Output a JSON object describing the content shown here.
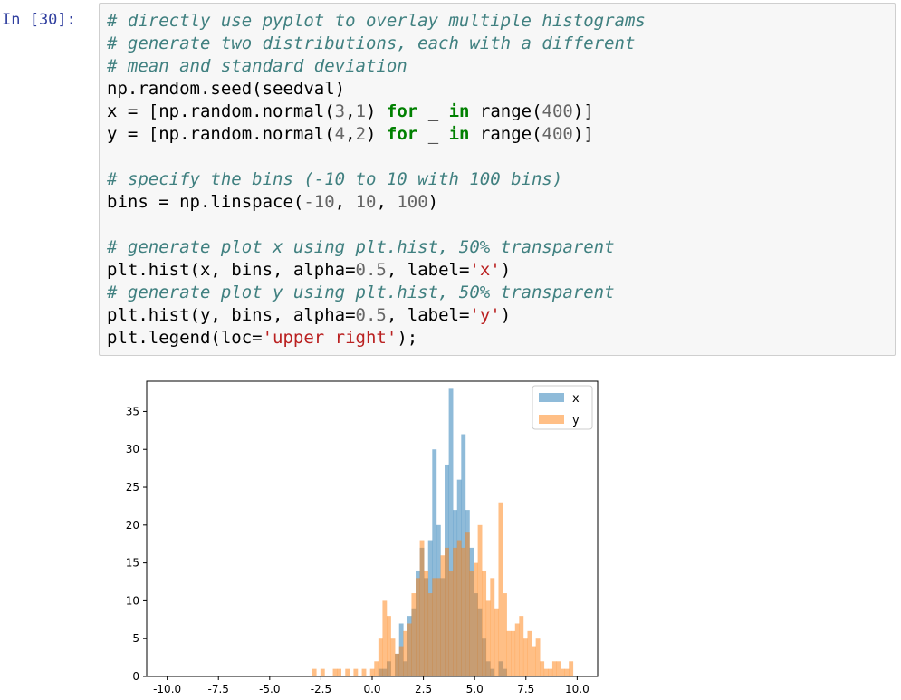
{
  "notebook": {
    "prompt": "In [30]:",
    "code_lines": [
      [
        {
          "t": "# directly use pyplot to overlay multiple histograms",
          "c": "cm"
        }
      ],
      [
        {
          "t": "# generate two distributions, each with a different",
          "c": "cm"
        }
      ],
      [
        {
          "t": "# mean and standard deviation",
          "c": "cm"
        }
      ],
      [
        {
          "t": "np.random.seed(seedval)",
          "c": ""
        }
      ],
      [
        {
          "t": "x = [np.random.normal(",
          "c": ""
        },
        {
          "t": "3",
          "c": "num"
        },
        {
          "t": ",",
          "c": ""
        },
        {
          "t": "1",
          "c": "num"
        },
        {
          "t": ") ",
          "c": ""
        },
        {
          "t": "for",
          "c": "kw"
        },
        {
          "t": " _ ",
          "c": ""
        },
        {
          "t": "in",
          "c": "kw"
        },
        {
          "t": " range(",
          "c": ""
        },
        {
          "t": "400",
          "c": "num"
        },
        {
          "t": ")]",
          "c": ""
        }
      ],
      [
        {
          "t": "y = [np.random.normal(",
          "c": ""
        },
        {
          "t": "4",
          "c": "num"
        },
        {
          "t": ",",
          "c": ""
        },
        {
          "t": "2",
          "c": "num"
        },
        {
          "t": ") ",
          "c": ""
        },
        {
          "t": "for",
          "c": "kw"
        },
        {
          "t": " _ ",
          "c": ""
        },
        {
          "t": "in",
          "c": "kw"
        },
        {
          "t": " range(",
          "c": ""
        },
        {
          "t": "400",
          "c": "num"
        },
        {
          "t": ")]",
          "c": ""
        }
      ],
      [],
      [
        {
          "t": "# specify the bins (-10 to 10 with 100 bins)",
          "c": "cm"
        }
      ],
      [
        {
          "t": "bins = np.linspace(",
          "c": ""
        },
        {
          "t": "-10",
          "c": "num"
        },
        {
          "t": ", ",
          "c": ""
        },
        {
          "t": "10",
          "c": "num"
        },
        {
          "t": ", ",
          "c": ""
        },
        {
          "t": "100",
          "c": "num"
        },
        {
          "t": ")",
          "c": ""
        }
      ],
      [],
      [
        {
          "t": "# generate plot x using plt.hist, 50% transparent",
          "c": "cm"
        }
      ],
      [
        {
          "t": "plt.hist(x, bins, alpha=",
          "c": ""
        },
        {
          "t": "0.5",
          "c": "num"
        },
        {
          "t": ", label=",
          "c": ""
        },
        {
          "t": "'x'",
          "c": "str"
        },
        {
          "t": ")",
          "c": ""
        }
      ],
      [
        {
          "t": "# generate plot y using plt.hist, 50% transparent",
          "c": "cm"
        }
      ],
      [
        {
          "t": "plt.hist(y, bins, alpha=",
          "c": ""
        },
        {
          "t": "0.5",
          "c": "num"
        },
        {
          "t": ", label=",
          "c": ""
        },
        {
          "t": "'y'",
          "c": "str"
        },
        {
          "t": ")",
          "c": ""
        }
      ],
      [
        {
          "t": "plt.legend(loc=",
          "c": ""
        },
        {
          "t": "'upper right'",
          "c": "str"
        },
        {
          "t": ");",
          "c": ""
        }
      ]
    ]
  },
  "chart_data": {
    "type": "bar",
    "title": "",
    "xlabel": "",
    "ylabel": "",
    "xlim": [
      -11,
      11
    ],
    "ylim": [
      0,
      39
    ],
    "xticks": [
      -10.0,
      -7.5,
      -5.0,
      -2.5,
      0.0,
      2.5,
      5.0,
      7.5,
      10.0
    ],
    "xtick_labels": [
      "-10.0",
      "-7.5",
      "-5.0",
      "-2.5",
      "0.0",
      "2.5",
      "5.0",
      "7.5",
      "10.0"
    ],
    "yticks": [
      0,
      5,
      10,
      15,
      20,
      25,
      30,
      35
    ],
    "ytick_labels": [
      "0",
      "5",
      "10",
      "15",
      "20",
      "25",
      "30",
      "35"
    ],
    "bin_range": [
      -10,
      10
    ],
    "bin_count": 99,
    "legend_position": "upper right",
    "series": [
      {
        "name": "x",
        "color": "#1f77b4",
        "alpha": 0.5,
        "bins": [
          [
            51,
            1
          ],
          [
            52,
            1
          ],
          [
            53,
            2
          ],
          [
            55,
            3
          ],
          [
            56,
            7
          ],
          [
            57,
            2
          ],
          [
            58,
            8
          ],
          [
            59,
            9
          ],
          [
            60,
            14
          ],
          [
            61,
            17
          ],
          [
            62,
            13
          ],
          [
            63,
            18
          ],
          [
            64,
            30
          ],
          [
            65,
            20
          ],
          [
            66,
            13
          ],
          [
            67,
            28
          ],
          [
            68,
            38
          ],
          [
            69,
            22
          ],
          [
            70,
            26
          ],
          [
            71,
            32
          ],
          [
            72,
            22
          ],
          [
            73,
            17
          ],
          [
            74,
            11
          ],
          [
            75,
            9
          ],
          [
            76,
            5
          ],
          [
            77,
            2
          ],
          [
            78,
            1
          ],
          [
            80,
            2
          ],
          [
            81,
            1
          ]
        ]
      },
      {
        "name": "y",
        "color": "#ff7f0e",
        "alpha": 0.5,
        "bins": [
          [
            35,
            1
          ],
          [
            37,
            1
          ],
          [
            40,
            1
          ],
          [
            41,
            1
          ],
          [
            43,
            1
          ],
          [
            45,
            1
          ],
          [
            47,
            1
          ],
          [
            49,
            1
          ],
          [
            50,
            2
          ],
          [
            51,
            5
          ],
          [
            52,
            10
          ],
          [
            53,
            8
          ],
          [
            54,
            5
          ],
          [
            55,
            3
          ],
          [
            56,
            4
          ],
          [
            57,
            6
          ],
          [
            58,
            7
          ],
          [
            59,
            11
          ],
          [
            60,
            13
          ],
          [
            61,
            18
          ],
          [
            62,
            14
          ],
          [
            63,
            11
          ],
          [
            64,
            13
          ],
          [
            65,
            13
          ],
          [
            66,
            16
          ],
          [
            67,
            17
          ],
          [
            68,
            14
          ],
          [
            69,
            17
          ],
          [
            70,
            18
          ],
          [
            71,
            17
          ],
          [
            72,
            19
          ],
          [
            73,
            14
          ],
          [
            74,
            15
          ],
          [
            75,
            20
          ],
          [
            76,
            14
          ],
          [
            77,
            10
          ],
          [
            78,
            13
          ],
          [
            79,
            9
          ],
          [
            80,
            23
          ],
          [
            81,
            11
          ],
          [
            82,
            6
          ],
          [
            83,
            6
          ],
          [
            84,
            7
          ],
          [
            85,
            8
          ],
          [
            86,
            5
          ],
          [
            87,
            6
          ],
          [
            88,
            4
          ],
          [
            89,
            5
          ],
          [
            90,
            2
          ],
          [
            91,
            1
          ],
          [
            92,
            1
          ],
          [
            93,
            2
          ],
          [
            94,
            2
          ],
          [
            95,
            1
          ],
          [
            96,
            1
          ],
          [
            97,
            2
          ]
        ]
      }
    ]
  }
}
